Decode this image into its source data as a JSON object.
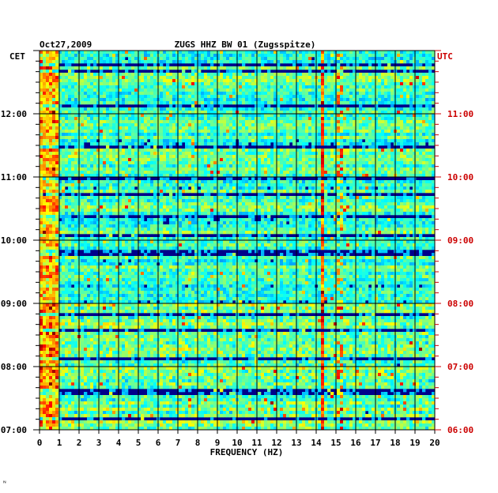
{
  "header": {
    "date": "Oct27,2009",
    "station": "ZUGS HHZ BW 01 (Zugsspitze)",
    "left_zone": "CET",
    "right_zone": "UTC"
  },
  "footer_mark": "ᴺ",
  "colors": {
    "background": "#ffffff",
    "text": "#000000",
    "utc_text": "#cc0000",
    "spectrogram_low": "#00008b",
    "spectrogram_high": "#ff0000"
  },
  "chart_data": {
    "type": "heatmap",
    "title": "ZUGS HHZ BW 01 (Zugsspitze)",
    "xlabel": "FREQUENCY (HZ)",
    "ylabel": "",
    "xlim": [
      0,
      20
    ],
    "x_ticks": [
      "0",
      "1",
      "2",
      "3",
      "4",
      "5",
      "6",
      "7",
      "8",
      "9",
      "10",
      "11",
      "12",
      "13",
      "14",
      "15",
      "16",
      "17",
      "18",
      "19",
      "20"
    ],
    "y_ticks_left": [
      "12:00",
      "11:00",
      "10:00",
      "09:00",
      "08:00",
      "07:00"
    ],
    "y_ticks_right": [
      "11:00",
      "10:00",
      "09:00",
      "08:00",
      "07:00",
      "06:00"
    ],
    "y_tick_hours_cet": [
      12,
      11,
      10,
      9,
      8,
      7
    ],
    "ylim_cet_hours": [
      7,
      13
    ],
    "colormap": "jet",
    "notable_features": [
      {
        "name": "narrow line near 14.3 Hz",
        "freq_hz": 14.3
      },
      {
        "name": "narrow line near 15.2 Hz",
        "freq_hz": 15.2
      }
    ]
  }
}
